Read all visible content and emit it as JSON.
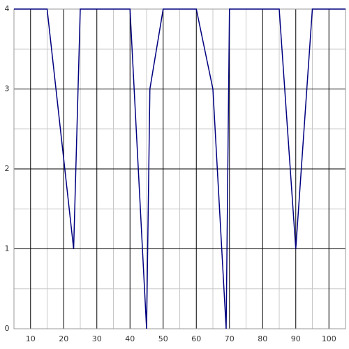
{
  "chart_data": {
    "type": "line",
    "x": [
      5,
      15,
      23,
      25,
      40,
      45,
      46,
      50,
      60,
      65,
      69,
      70,
      85,
      90,
      95,
      105
    ],
    "series": [
      {
        "color": "#000080",
        "values": [
          4,
          4,
          1,
          4,
          4,
          0,
          3,
          4,
          4,
          3,
          0,
          4,
          4,
          1,
          4,
          4
        ]
      }
    ],
    "xlim": [
      5,
      105
    ],
    "ylim": [
      0,
      4
    ],
    "xticks": [
      10,
      20,
      30,
      40,
      50,
      60,
      70,
      80,
      90,
      100
    ],
    "yticks": [
      0,
      1,
      2,
      3,
      4
    ],
    "xminorticks": [
      15,
      25,
      35,
      45,
      55,
      65,
      75,
      85,
      95
    ],
    "yminorticks": [
      0.5,
      1.5,
      2.5,
      3.5
    ],
    "grid": true
  }
}
